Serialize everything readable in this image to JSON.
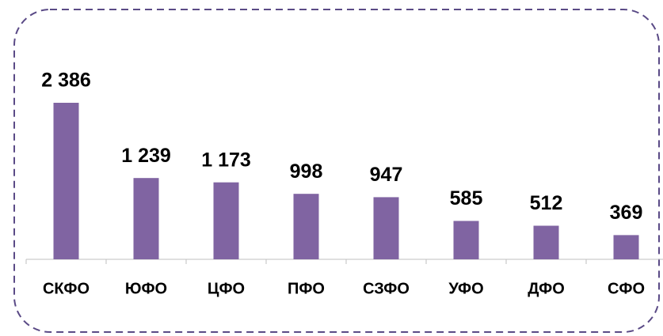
{
  "chart_data": {
    "type": "bar",
    "categories": [
      "СКФО",
      "ЮФО",
      "ЦФО",
      "ПФО",
      "СЗФО",
      "УФО",
      "ДФО",
      "СФО"
    ],
    "values": [
      2386,
      1239,
      1173,
      998,
      947,
      585,
      512,
      369
    ],
    "value_labels": [
      "2 386",
      "1 239",
      "1 173",
      "998",
      "947",
      "585",
      "512",
      "369"
    ],
    "color": "#8064a2"
  }
}
